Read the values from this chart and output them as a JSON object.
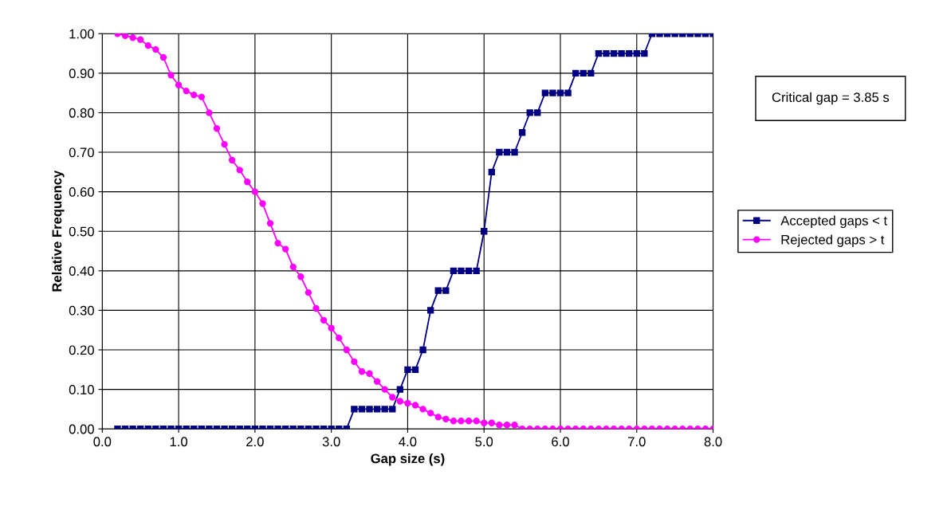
{
  "chart_data": {
    "type": "line",
    "xlabel": "Gap size (s)",
    "ylabel": "Relative Frequency",
    "x": [
      0.2,
      0.3,
      0.4,
      0.5,
      0.6,
      0.7,
      0.8,
      0.9,
      1.0,
      1.1,
      1.2,
      1.3,
      1.4,
      1.5,
      1.6,
      1.7,
      1.8,
      1.9,
      2.0,
      2.1,
      2.2,
      2.3,
      2.4,
      2.5,
      2.6,
      2.7,
      2.8,
      2.9,
      3.0,
      3.1,
      3.2,
      3.3,
      3.4,
      3.5,
      3.6,
      3.7,
      3.8,
      3.9,
      4.0,
      4.1,
      4.2,
      4.3,
      4.4,
      4.5,
      4.6,
      4.7,
      4.8,
      4.9,
      5.0,
      5.1,
      5.2,
      5.3,
      5.4,
      5.5,
      5.6,
      5.7,
      5.8,
      5.9,
      6.0,
      6.1,
      6.2,
      6.3,
      6.4,
      6.5,
      6.6,
      6.7,
      6.8,
      6.9,
      7.0,
      7.1,
      7.2,
      7.3,
      7.4,
      7.5,
      7.6,
      7.7,
      7.8,
      7.9,
      8.0
    ],
    "series": [
      {
        "name": "Accepted gaps < t",
        "color": "#000080",
        "marker": "square",
        "values": [
          0,
          0,
          0,
          0,
          0,
          0,
          0,
          0,
          0,
          0,
          0,
          0,
          0,
          0,
          0,
          0,
          0,
          0,
          0,
          0,
          0,
          0,
          0,
          0,
          0,
          0,
          0,
          0,
          0,
          0,
          0,
          0.05,
          0.05,
          0.05,
          0.05,
          0.05,
          0.05,
          0.1,
          0.15,
          0.15,
          0.2,
          0.3,
          0.35,
          0.35,
          0.4,
          0.4,
          0.4,
          0.4,
          0.5,
          0.65,
          0.7,
          0.7,
          0.7,
          0.75,
          0.8,
          0.8,
          0.85,
          0.85,
          0.85,
          0.85,
          0.9,
          0.9,
          0.9,
          0.95,
          0.95,
          0.95,
          0.95,
          0.95,
          0.95,
          0.95,
          1.0,
          1.0,
          1.0,
          1.0,
          1.0,
          1.0,
          1.0,
          1.0,
          1.0
        ]
      },
      {
        "name": "Rejected gaps > t",
        "color": "#ff00ff",
        "marker": "circle",
        "values": [
          1.0,
          0.995,
          0.99,
          0.985,
          0.97,
          0.96,
          0.94,
          0.895,
          0.87,
          0.855,
          0.845,
          0.84,
          0.8,
          0.76,
          0.72,
          0.68,
          0.655,
          0.625,
          0.6,
          0.57,
          0.52,
          0.47,
          0.455,
          0.41,
          0.385,
          0.345,
          0.305,
          0.275,
          0.255,
          0.23,
          0.2,
          0.17,
          0.145,
          0.14,
          0.12,
          0.1,
          0.08,
          0.07,
          0.065,
          0.06,
          0.05,
          0.04,
          0.03,
          0.025,
          0.02,
          0.02,
          0.02,
          0.02,
          0.015,
          0.015,
          0.01,
          0.01,
          0.01,
          0,
          0,
          0,
          0,
          0,
          0,
          0,
          0,
          0,
          0,
          0,
          0,
          0,
          0,
          0,
          0,
          0,
          0,
          0,
          0,
          0,
          0,
          0,
          0,
          0,
          0
        ]
      }
    ],
    "xlim": [
      0,
      8
    ],
    "xticks": [
      {
        "value": 0,
        "label": "0.0"
      },
      {
        "value": 1,
        "label": "1.0"
      },
      {
        "value": 2,
        "label": "2.0"
      },
      {
        "value": 3,
        "label": "3.0"
      },
      {
        "value": 4,
        "label": "4.0"
      },
      {
        "value": 5,
        "label": "5.0"
      },
      {
        "value": 6,
        "label": "6.0"
      },
      {
        "value": 7,
        "label": "7.0"
      },
      {
        "value": 8,
        "label": "8.0"
      }
    ],
    "ylim": [
      0,
      1
    ],
    "yticks": [
      {
        "value": 0,
        "label": "0.00"
      },
      {
        "value": 0.1,
        "label": "0.10"
      },
      {
        "value": 0.2,
        "label": "0.20"
      },
      {
        "value": 0.3,
        "label": "0.30"
      },
      {
        "value": 0.4,
        "label": "0.40"
      },
      {
        "value": 0.5,
        "label": "0.50"
      },
      {
        "value": 0.6,
        "label": "0.60"
      },
      {
        "value": 0.7,
        "label": "0.70"
      },
      {
        "value": 0.8,
        "label": "0.80"
      },
      {
        "value": 0.9,
        "label": "0.90"
      },
      {
        "value": 1.0,
        "label": "1.00"
      }
    ],
    "grid": true,
    "legend": "right",
    "line_style": "solid",
    "annotations": [
      "Critical gap = 3.85 s"
    ]
  }
}
